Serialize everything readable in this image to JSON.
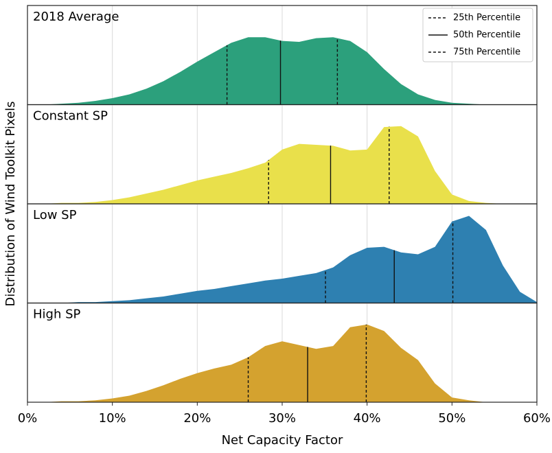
{
  "chart_data": {
    "type": "area",
    "xlabel": "Net Capacity Factor",
    "ylabel": "Distribution of Wind Toolkit Pixels",
    "xlim": [
      0,
      60
    ],
    "ylim": [
      0,
      1
    ],
    "xticks": [
      {
        "value": 0,
        "label": "0%"
      },
      {
        "value": 10,
        "label": "10%"
      },
      {
        "value": 20,
        "label": "20%"
      },
      {
        "value": 30,
        "label": "30%"
      },
      {
        "value": 40,
        "label": "40%"
      },
      {
        "value": 50,
        "label": "50%"
      },
      {
        "value": 60,
        "label": "60%"
      }
    ],
    "grid": true,
    "legend": "upper right",
    "percentile_labels": [
      "25th Percentile",
      "50th Percentile",
      "75th Percentile"
    ],
    "percentile_styles": [
      "dashed",
      "solid",
      "dashed"
    ],
    "x": [
      0,
      2,
      4,
      6,
      8,
      10,
      12,
      14,
      16,
      18,
      20,
      22,
      24,
      26,
      28,
      30,
      32,
      34,
      36,
      38,
      40,
      42,
      44,
      46,
      48,
      50,
      52,
      54,
      56,
      58,
      60
    ],
    "series": [
      {
        "name": "2018 Average",
        "color": "#2ca07c",
        "percentiles": [
          23.5,
          29.8,
          36.5
        ],
        "values": [
          0,
          0,
          0.01,
          0.02,
          0.04,
          0.07,
          0.11,
          0.17,
          0.25,
          0.35,
          0.46,
          0.56,
          0.66,
          0.72,
          0.72,
          0.68,
          0.67,
          0.71,
          0.72,
          0.68,
          0.56,
          0.38,
          0.22,
          0.11,
          0.05,
          0.02,
          0.01,
          0,
          0,
          0,
          0
        ]
      },
      {
        "name": "Constant SP",
        "color": "#e9e04b",
        "percentiles": [
          28.4,
          35.7,
          42.6
        ],
        "values": [
          0,
          0,
          0.01,
          0.01,
          0.02,
          0.04,
          0.07,
          0.11,
          0.15,
          0.2,
          0.25,
          0.29,
          0.33,
          0.38,
          0.44,
          0.58,
          0.64,
          0.63,
          0.62,
          0.57,
          0.58,
          0.82,
          0.83,
          0.72,
          0.35,
          0.1,
          0.03,
          0.01,
          0,
          0,
          0
        ]
      },
      {
        "name": "Low SP",
        "color": "#2e80b1",
        "percentiles": [
          35.1,
          43.2,
          50.1
        ],
        "values": [
          0,
          0,
          0,
          0.01,
          0.01,
          0.02,
          0.03,
          0.05,
          0.07,
          0.1,
          0.13,
          0.15,
          0.18,
          0.21,
          0.24,
          0.26,
          0.29,
          0.32,
          0.38,
          0.51,
          0.59,
          0.6,
          0.54,
          0.52,
          0.6,
          0.87,
          0.93,
          0.78,
          0.4,
          0.12,
          0.01
        ]
      },
      {
        "name": "High SP",
        "color": "#d4a22f",
        "percentiles": [
          26.0,
          33.0,
          39.9
        ],
        "values": [
          0,
          0,
          0.01,
          0.01,
          0.02,
          0.04,
          0.07,
          0.12,
          0.18,
          0.25,
          0.31,
          0.36,
          0.4,
          0.48,
          0.6,
          0.65,
          0.61,
          0.57,
          0.6,
          0.8,
          0.83,
          0.76,
          0.58,
          0.45,
          0.2,
          0.05,
          0.02,
          0,
          0,
          0,
          0
        ]
      }
    ]
  }
}
